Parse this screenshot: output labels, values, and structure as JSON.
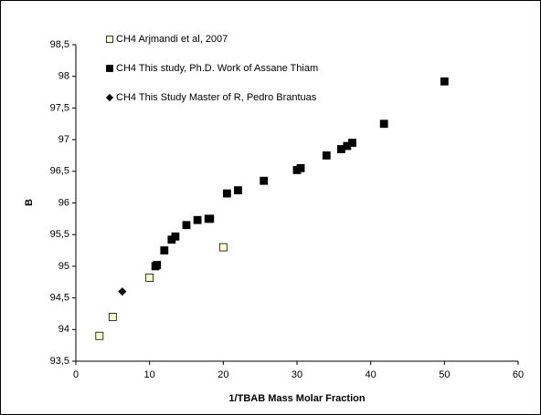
{
  "chart_data": {
    "type": "scatter",
    "x_label": "1/TBAB Mass Molar Fraction",
    "y_label": "B",
    "xlim": [
      0,
      60
    ],
    "xticks": [
      0,
      10,
      20,
      30,
      40,
      50,
      60
    ],
    "ylim": [
      93.5,
      98.5
    ],
    "yticks": [
      {
        "value": 93.5,
        "label": "93,5"
      },
      94,
      {
        "value": 94.5,
        "label": "94,5"
      },
      95,
      {
        "value": 95.5,
        "label": "95,5"
      },
      96,
      {
        "value": 96.5,
        "label": "96,5"
      },
      97,
      {
        "value": 97.5,
        "label": "97,5"
      },
      98,
      {
        "value": 98.5,
        "label": "98,5"
      }
    ],
    "grid": false,
    "legend": "upper left",
    "series": [
      {
        "name": "CH4 Arjmandi et al, 2007",
        "color": "#ffffcc",
        "marker": "square",
        "x": [
          3.2,
          5,
          10,
          20
        ],
        "values": [
          93.9,
          94.2,
          94.82,
          95.3
        ]
      },
      {
        "name": "CH4 This study, Ph.D. Work of  Assane Thiam",
        "color": "#000000",
        "marker": "square",
        "x": [
          10.8,
          11,
          12,
          13,
          13.5,
          15,
          16.5,
          18,
          18.2,
          20.5,
          22,
          25.5,
          30,
          30.5,
          34,
          36,
          36.8,
          37.5,
          41.8,
          50
        ],
        "values": [
          95.0,
          95.02,
          95.25,
          95.42,
          95.47,
          95.65,
          95.73,
          95.75,
          95.75,
          96.15,
          96.2,
          96.35,
          96.52,
          96.55,
          96.75,
          96.85,
          96.9,
          96.95,
          97.25,
          97.92
        ]
      },
      {
        "name": "CH4 This Study Master of R, Pedro Brantuas",
        "color": "#000000",
        "marker": "diamond",
        "x": [
          6.3
        ],
        "values": [
          94.6
        ]
      }
    ]
  }
}
